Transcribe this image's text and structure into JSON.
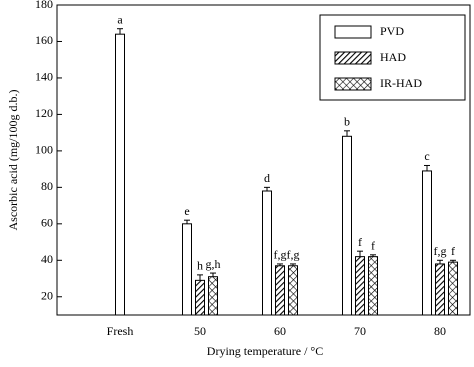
{
  "chart_data": {
    "type": "bar",
    "x_label": "Drying temperature / °C",
    "y_label": "Ascorbic acid (mg/100g d.b.)",
    "categories": [
      "Fresh",
      "50",
      "60",
      "70",
      "80"
    ],
    "series": [
      {
        "name": "PVD",
        "color": "#ffffff",
        "values": [
          164,
          60,
          78,
          108,
          89
        ],
        "errors": [
          3,
          2,
          2,
          3,
          3
        ],
        "letters": [
          "a",
          "e",
          "d",
          "b",
          "c"
        ]
      },
      {
        "name": "HAD",
        "color": "hatch",
        "values": [
          null,
          29,
          37,
          42,
          38
        ],
        "errors": [
          null,
          3,
          1,
          3,
          2
        ],
        "letters": [
          null,
          "h",
          "f,g",
          "f",
          "f,g"
        ]
      },
      {
        "name": "IR-HAD",
        "color": "cross",
        "values": [
          null,
          31,
          37,
          42,
          39
        ],
        "errors": [
          null,
          2,
          1,
          1,
          1
        ],
        "letters": [
          null,
          "g,h",
          "f,g",
          "f",
          "f"
        ]
      }
    ],
    "ylim": [
      10,
      180
    ],
    "yticks": [
      20,
      40,
      60,
      80,
      100,
      120,
      140,
      160,
      180
    ],
    "legend": "upper right"
  }
}
